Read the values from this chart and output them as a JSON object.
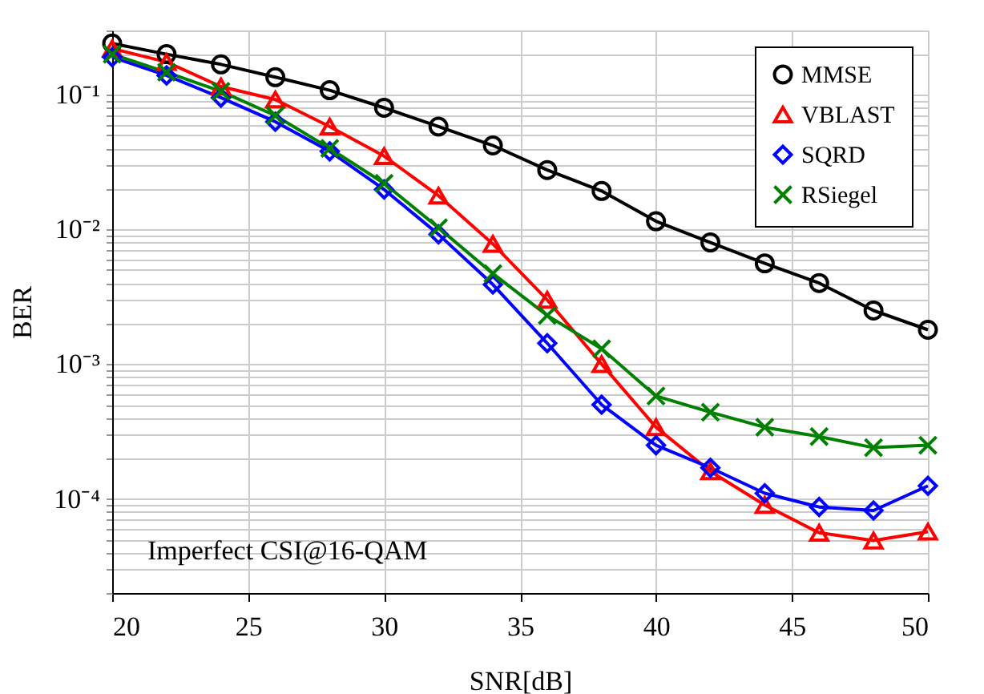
{
  "chart_data": {
    "type": "line",
    "xlabel": "SNR[dB]",
    "ylabel": "BER",
    "log": "y",
    "grid": true,
    "legend": "top right",
    "x": [
      20,
      22,
      24,
      26,
      28,
      30,
      32,
      34,
      36,
      38,
      40,
      42,
      44,
      46,
      48,
      50
    ],
    "xlim": [
      20,
      50
    ],
    "xticks": [
      20,
      25,
      30,
      35,
      40,
      45,
      50
    ],
    "ylim": [
      2e-05,
      0.3
    ],
    "yticks": [
      {
        "value": 2e-05,
        "label": null
      },
      {
        "value": 3e-05,
        "label": null
      },
      {
        "value": 4e-05,
        "label": null
      },
      {
        "value": 5e-05,
        "label": null
      },
      {
        "value": 6e-05,
        "label": null
      },
      {
        "value": 7e-05,
        "label": null
      },
      {
        "value": 8e-05,
        "label": null
      },
      {
        "value": 9e-05,
        "label": null
      },
      {
        "value": 0.0001,
        "label": "10⁻⁴"
      },
      {
        "value": 0.0002,
        "label": null
      },
      {
        "value": 0.0003,
        "label": null
      },
      {
        "value": 0.0004,
        "label": null
      },
      {
        "value": 0.0005,
        "label": null
      },
      {
        "value": 0.0006,
        "label": null
      },
      {
        "value": 0.0007,
        "label": null
      },
      {
        "value": 0.0008,
        "label": null
      },
      {
        "value": 0.0009,
        "label": null
      },
      {
        "value": 0.001,
        "label": "10⁻³"
      },
      {
        "value": 0.002,
        "label": null
      },
      {
        "value": 0.003,
        "label": null
      },
      {
        "value": 0.004,
        "label": null
      },
      {
        "value": 0.005,
        "label": null
      },
      {
        "value": 0.006,
        "label": null
      },
      {
        "value": 0.007,
        "label": null
      },
      {
        "value": 0.008,
        "label": null
      },
      {
        "value": 0.009,
        "label": null
      },
      {
        "value": 0.01,
        "label": "10⁻²"
      },
      {
        "value": 0.02,
        "label": null
      },
      {
        "value": 0.03,
        "label": null
      },
      {
        "value": 0.04,
        "label": null
      },
      {
        "value": 0.05,
        "label": null
      },
      {
        "value": 0.06,
        "label": null
      },
      {
        "value": 0.07,
        "label": null
      },
      {
        "value": 0.08,
        "label": null
      },
      {
        "value": 0.09,
        "label": null
      },
      {
        "value": 0.1,
        "label": "10⁻¹"
      },
      {
        "value": 0.2,
        "label": null
      },
      {
        "value": 0.3,
        "label": null
      }
    ],
    "series": [
      {
        "name": "MMSE",
        "color": "#000000",
        "marker": "circle",
        "values": [
          0.24,
          0.2,
          0.168,
          0.135,
          0.108,
          0.08,
          0.058,
          0.042,
          0.0276,
          0.0193,
          0.0115,
          0.008,
          0.0056,
          0.004,
          0.0025,
          0.0018
        ]
      },
      {
        "name": "VBLAST",
        "color": "#ff0000",
        "marker": "triangle",
        "values": [
          0.22,
          0.175,
          0.115,
          0.092,
          0.058,
          0.035,
          0.0178,
          0.0078,
          0.003,
          0.001,
          0.00034,
          0.00016,
          9e-05,
          5.6e-05,
          4.9e-05,
          5.7e-05
        ]
      },
      {
        "name": "SQRD",
        "color": "#0000ff",
        "marker": "diamond",
        "values": [
          0.19,
          0.139,
          0.095,
          0.063,
          0.038,
          0.0198,
          0.0092,
          0.0039,
          0.00143,
          0.0005,
          0.00025,
          0.00017,
          0.00011,
          8.7e-05,
          8.2e-05,
          0.000125
        ]
      },
      {
        "name": "RSiegel",
        "color": "#008000",
        "marker": "cross",
        "values": [
          0.2,
          0.147,
          0.106,
          0.07,
          0.04,
          0.022,
          0.0103,
          0.0047,
          0.0023,
          0.0013,
          0.00058,
          0.00044,
          0.00034,
          0.00029,
          0.00024,
          0.00025
        ]
      }
    ],
    "annotations": [
      "Imperfect CSI@16-QAM"
    ]
  }
}
